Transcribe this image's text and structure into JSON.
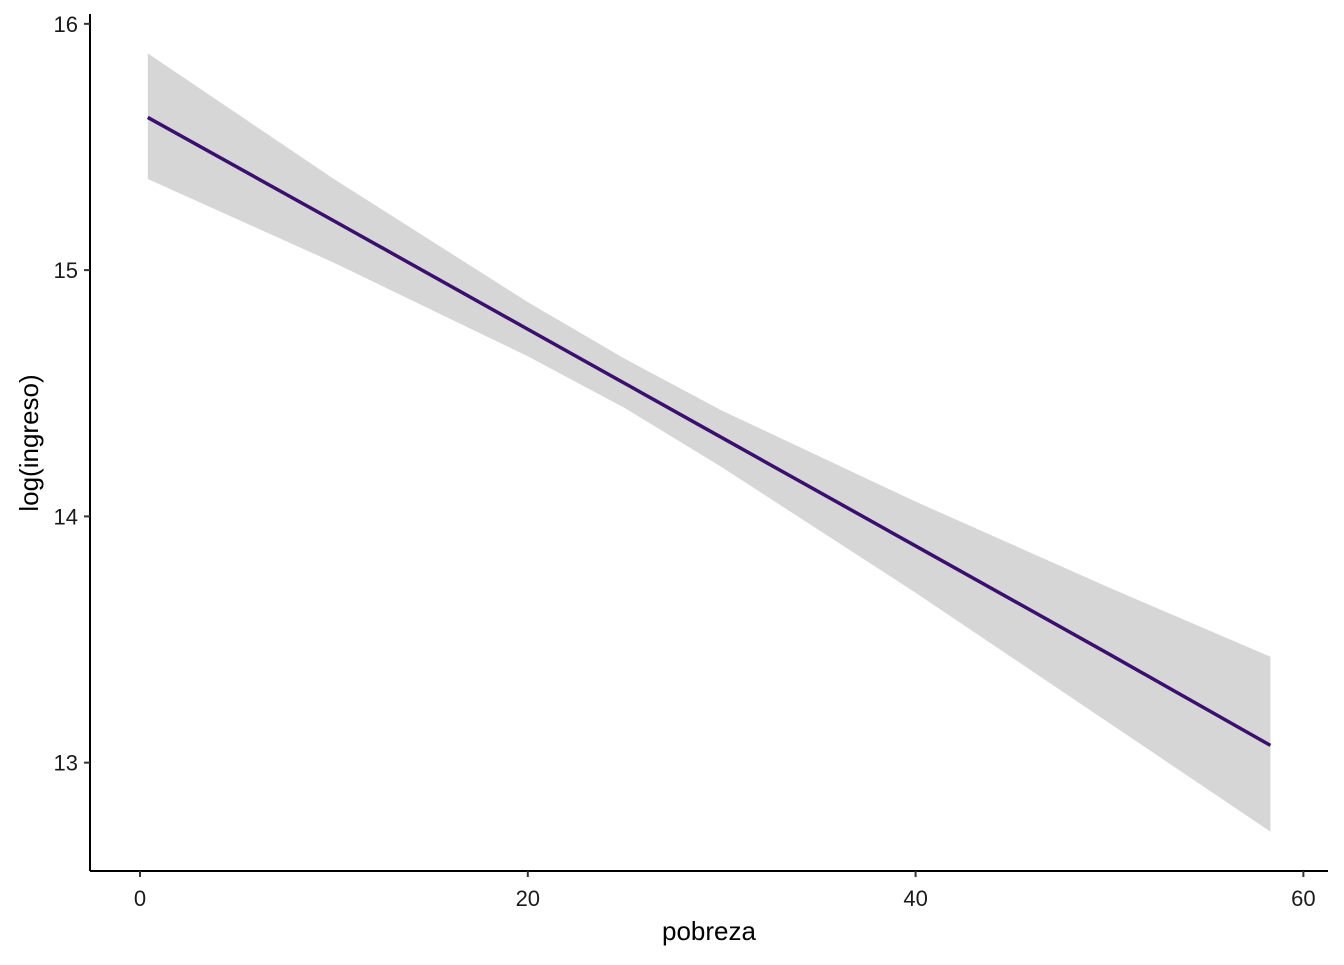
{
  "chart_data": {
    "type": "line",
    "xlabel": "pobreza",
    "ylabel": "log(ingreso)",
    "x": [
      0.4,
      10,
      20,
      25,
      30,
      40,
      50,
      58.3
    ],
    "values": [
      15.62,
      15.2,
      14.76,
      14.54,
      14.32,
      13.88,
      13.44,
      13.07
    ],
    "lower": [
      15.37,
      15.03,
      14.65,
      14.44,
      14.2,
      13.69,
      13.16,
      12.72
    ],
    "upper": [
      15.88,
      15.37,
      14.87,
      14.64,
      14.43,
      14.06,
      13.71,
      13.43
    ],
    "color": "#3b0f6f",
    "band_color": "#d6d6d6",
    "xlim": [
      -2.58,
      61.27
    ],
    "ylim": [
      12.56,
      16.04
    ],
    "xticks": [
      0,
      20,
      40,
      60
    ],
    "yticks": [
      13,
      14,
      15,
      16
    ]
  }
}
